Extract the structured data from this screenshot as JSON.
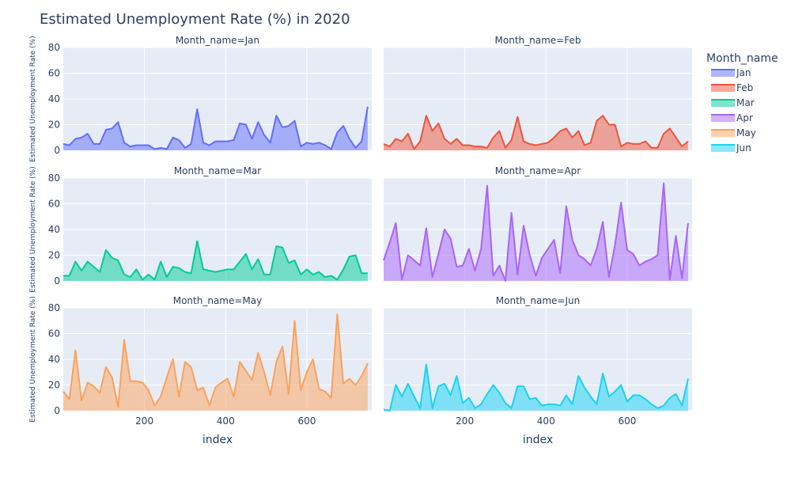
{
  "chart_data": {
    "type": "area",
    "title": "Estimated Unemployment Rate (%) in 2020",
    "xlabel": "index",
    "ylabel": "Estimated Unemployment Rate (%)",
    "xlim": [
      0,
      760
    ],
    "ylim": [
      0,
      80
    ],
    "x_ticks": [
      200,
      400,
      600
    ],
    "y_ticks": [
      0,
      20,
      40,
      60,
      80
    ],
    "grid": true,
    "legend": {
      "title": "Month_name",
      "placement": "right"
    },
    "x": [
      0,
      15,
      30,
      45,
      60,
      75,
      90,
      105,
      120,
      135,
      150,
      165,
      180,
      195,
      210,
      225,
      240,
      255,
      270,
      285,
      300,
      315,
      330,
      345,
      360,
      375,
      390,
      405,
      420,
      435,
      450,
      465,
      480,
      495,
      510,
      525,
      540,
      555,
      570,
      585,
      600,
      615,
      630,
      645,
      660,
      675,
      690,
      705,
      720,
      735,
      750
    ],
    "series": [
      {
        "name": "Jan",
        "facet_label": "Month_name=Jan",
        "color": "#636efa",
        "values": [
          5,
          4,
          9,
          10,
          13,
          5,
          5,
          16,
          17,
          22,
          6,
          3,
          4,
          4,
          4,
          1,
          2,
          1,
          10,
          8,
          2,
          5,
          32,
          6,
          4,
          7,
          7,
          7,
          8,
          21,
          20,
          9,
          22,
          12,
          6,
          27,
          18,
          19,
          23,
          3,
          6,
          5,
          6,
          4,
          1,
          14,
          19,
          9,
          2,
          7,
          34
        ]
      },
      {
        "name": "Feb",
        "facet_label": "Month_name=Feb",
        "color": "#ef553b",
        "values": [
          5,
          3,
          9,
          7,
          13,
          1,
          7,
          27,
          15,
          21,
          9,
          5,
          9,
          4,
          4,
          3,
          3,
          2,
          10,
          15,
          2,
          8,
          26,
          7,
          5,
          4,
          5,
          6,
          10,
          15,
          17,
          10,
          15,
          4,
          6,
          23,
          27,
          20,
          20,
          3,
          6,
          5,
          5,
          7,
          2,
          2,
          13,
          17,
          10,
          3,
          7
        ]
      },
      {
        "name": "Mar",
        "facet_label": "Month_name=Mar",
        "color": "#00cc96",
        "values": [
          4,
          4,
          15,
          8,
          15,
          11,
          7,
          24,
          18,
          16,
          5,
          3,
          9,
          1,
          5,
          1,
          15,
          3,
          11,
          10,
          7,
          6,
          31,
          9,
          8,
          7,
          8,
          9,
          9,
          15,
          21,
          9,
          17,
          5,
          5,
          27,
          26,
          14,
          16,
          5,
          9,
          5,
          7,
          3,
          4,
          1,
          9,
          19,
          20,
          6,
          6
        ]
      },
      {
        "name": "Apr",
        "facet_label": "Month_name=Apr",
        "color": "#ab63fa",
        "values": [
          16,
          30,
          45,
          1,
          20,
          16,
          12,
          41,
          3,
          21,
          40,
          33,
          11,
          12,
          25,
          8,
          25,
          74,
          4,
          12,
          0,
          53,
          5,
          43,
          20,
          4,
          18,
          25,
          32,
          6,
          58,
          32,
          20,
          17,
          12,
          25,
          46,
          3,
          28,
          61,
          24,
          21,
          12,
          15,
          17,
          20,
          76,
          1,
          35,
          2,
          45
        ]
      },
      {
        "name": "May",
        "facet_label": "Month_name=May",
        "color": "#fea15a",
        "values": [
          15,
          9,
          47,
          8,
          22,
          19,
          14,
          34,
          26,
          3,
          55,
          23,
          23,
          22,
          16,
          4,
          11,
          26,
          40,
          11,
          38,
          34,
          16,
          18,
          4,
          18,
          22,
          25,
          11,
          38,
          31,
          24,
          45,
          30,
          12,
          38,
          50,
          13,
          70,
          16,
          30,
          40,
          17,
          15,
          10,
          75,
          21,
          25,
          20,
          27,
          37
        ]
      },
      {
        "name": "Jun",
        "facet_label": "Month_name=Jun",
        "color": "#19d3f3",
        "values": [
          1,
          0,
          20,
          11,
          21,
          11,
          2,
          36,
          2,
          19,
          21,
          12,
          27,
          6,
          10,
          2,
          5,
          13,
          20,
          14,
          6,
          2,
          19,
          19,
          9,
          10,
          4,
          5,
          5,
          4,
          12,
          5,
          27,
          18,
          11,
          5,
          29,
          11,
          15,
          20,
          7,
          12,
          12,
          9,
          5,
          2,
          4,
          10,
          13,
          4,
          25
        ]
      }
    ]
  }
}
